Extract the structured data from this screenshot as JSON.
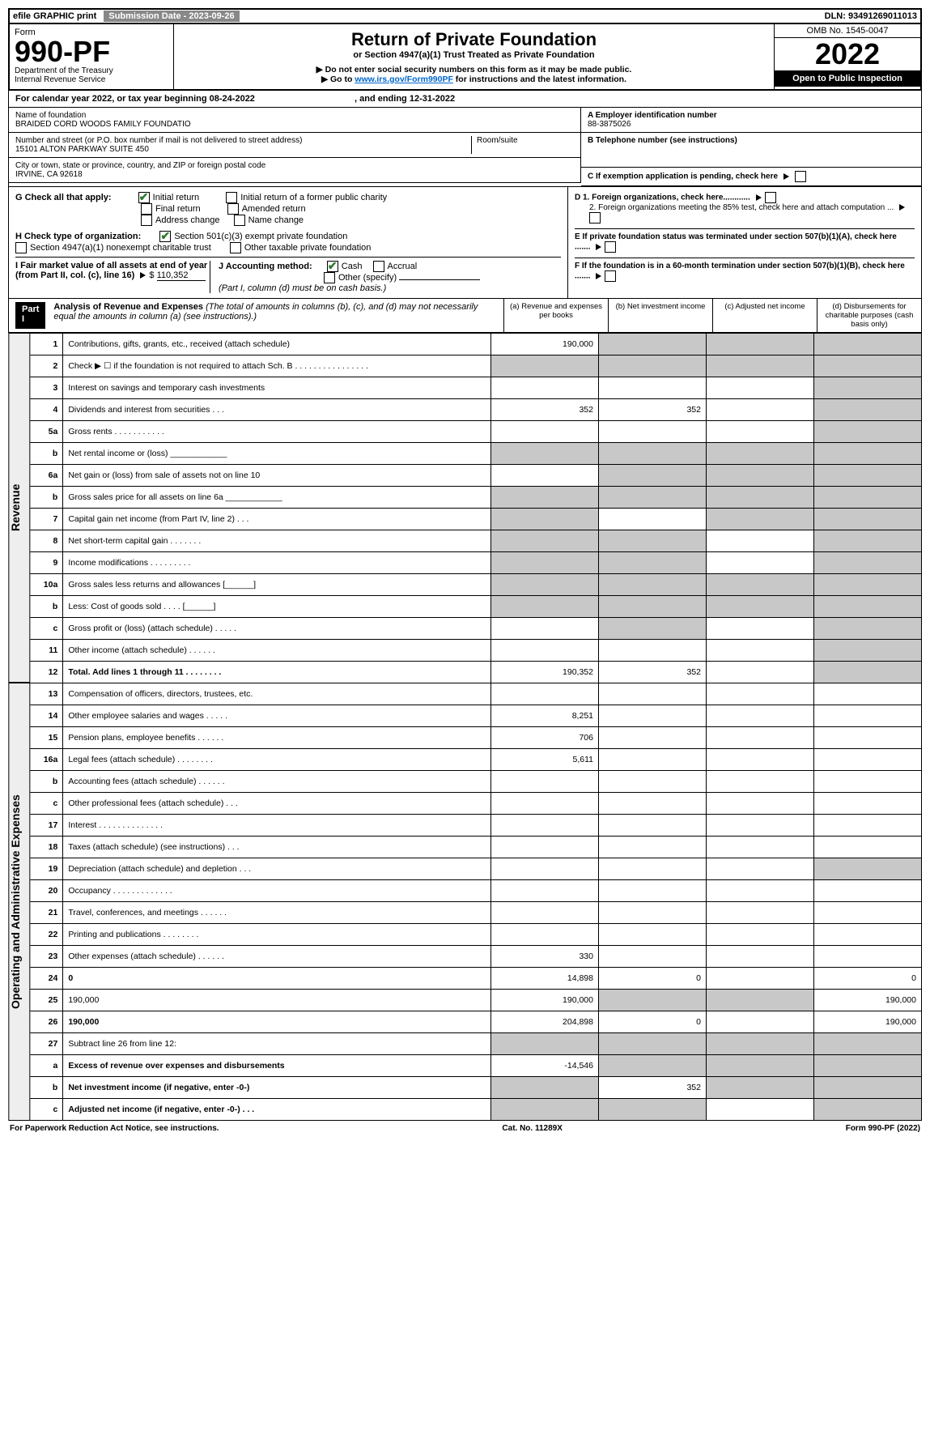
{
  "topbar": {
    "efile": "efile GRAPHIC print",
    "sub_label": "Submission Date - 2023-09-26",
    "dln_label": "DLN: 93491269011013"
  },
  "header": {
    "form_word": "Form",
    "form_no": "990-PF",
    "dept": "Department of the Treasury",
    "irs": "Internal Revenue Service",
    "title": "Return of Private Foundation",
    "subtitle": "or Section 4947(a)(1) Trust Treated as Private Foundation",
    "note1": "▶ Do not enter social security numbers on this form as it may be made public.",
    "note2_pre": "▶ Go to ",
    "note2_link": "www.irs.gov/Form990PF",
    "note2_post": " for instructions and the latest information.",
    "omb": "OMB No. 1545-0047",
    "year": "2022",
    "open": "Open to Public Inspection"
  },
  "calendar": {
    "text_pre": "For calendar year 2022, or tax year beginning ",
    "begin": "08-24-2022",
    "mid": " , and ending ",
    "end": "12-31-2022"
  },
  "info": {
    "name_label": "Name of foundation",
    "name": "BRAIDED CORD WOODS FAMILY FOUNDATIO",
    "addr_label": "Number and street (or P.O. box number if mail is not delivered to street address)",
    "room_label": "Room/suite",
    "addr": "15101 ALTON PARKWAY SUITE 450",
    "city_label": "City or town, state or province, country, and ZIP or foreign postal code",
    "city": "IRVINE, CA  92618",
    "ein_label": "A Employer identification number",
    "ein": "88-3875026",
    "tel_label": "B Telephone number (see instructions)",
    "c_label": "C If exemption application is pending, check here",
    "d1": "D 1. Foreign organizations, check here............",
    "d2": "2. Foreign organizations meeting the 85% test, check here and attach computation ...",
    "e": "E If private foundation status was terminated under section 507(b)(1)(A), check here .......",
    "f": "F  If the foundation is in a 60-month termination under section 507(b)(1)(B), check here .......",
    "g_label": "G Check all that apply:",
    "g_opts": [
      "Initial return",
      "Initial return of a former public charity",
      "Final return",
      "Amended return",
      "Address change",
      "Name change"
    ],
    "h_label": "H Check type of organization:",
    "h_opts": [
      "Section 501(c)(3) exempt private foundation",
      "Section 4947(a)(1) nonexempt charitable trust",
      "Other taxable private foundation"
    ],
    "i_label": "I Fair market value of all assets at end of year (from Part II, col. (c), line 16)",
    "i_val": "110,352",
    "j_label": "J Accounting method:",
    "j_opts": [
      "Cash",
      "Accrual",
      "Other (specify)"
    ],
    "j_note": "(Part I, column (d) must be on cash basis.)"
  },
  "part1": {
    "label": "Part I",
    "title": "Analysis of Revenue and Expenses",
    "title_note": " (The total of amounts in columns (b), (c), and (d) may not necessarily equal the amounts in column (a) (see instructions).)",
    "colA": "(a)  Revenue and expenses per books",
    "colB": "(b)  Net investment income",
    "colC": "(c)  Adjusted net income",
    "colD": "(d)  Disbursements for charitable purposes (cash basis only)"
  },
  "sideRevenue": "Revenue",
  "sideExpenses": "Operating and Administrative Expenses",
  "rows": [
    {
      "n": "1",
      "d": "Contributions, gifts, grants, etc., received (attach schedule)",
      "a": "190,000",
      "bShade": true,
      "cShade": true,
      "dShade": true
    },
    {
      "n": "2",
      "d": "Check ▶ ☐ if the foundation is not required to attach Sch. B    .  .  .  .  .  .  .  .  .  .  .  .  .  .  .  .",
      "aShade": true,
      "bShade": true,
      "cShade": true,
      "dShade": true
    },
    {
      "n": "3",
      "d": "Interest on savings and temporary cash investments",
      "dShade": true
    },
    {
      "n": "4",
      "d": "Dividends and interest from securities   .   .   .",
      "a": "352",
      "b": "352",
      "dShade": true
    },
    {
      "n": "5a",
      "d": "Gross rents    .   .   .   .   .   .   .   .   .   .   .",
      "dShade": true
    },
    {
      "n": "b",
      "d": "Net rental income or (loss)  ____________",
      "aShade": true,
      "bShade": true,
      "cShade": true,
      "dShade": true
    },
    {
      "n": "6a",
      "d": "Net gain or (loss) from sale of assets not on line 10",
      "bShade": true,
      "cShade": true,
      "dShade": true
    },
    {
      "n": "b",
      "d": "Gross sales price for all assets on line 6a ____________",
      "aShade": true,
      "bShade": true,
      "cShade": true,
      "dShade": true
    },
    {
      "n": "7",
      "d": "Capital gain net income (from Part IV, line 2)   .   .   .",
      "aShade": true,
      "cShade": true,
      "dShade": true
    },
    {
      "n": "8",
      "d": "Net short-term capital gain  .   .   .   .   .   .   .",
      "aShade": true,
      "bShade": true,
      "dShade": true
    },
    {
      "n": "9",
      "d": "Income modifications  .   .   .   .   .   .   .   .   .",
      "aShade": true,
      "bShade": true,
      "dShade": true
    },
    {
      "n": "10a",
      "d": "Gross sales less returns and allowances  [______]",
      "aShade": true,
      "bShade": true,
      "cShade": true,
      "dShade": true
    },
    {
      "n": "b",
      "d": "Less: Cost of goods sold   .   .   .   .  [______]",
      "aShade": true,
      "bShade": true,
      "cShade": true,
      "dShade": true
    },
    {
      "n": "c",
      "d": "Gross profit or (loss) (attach schedule)   .   .   .   .   .",
      "bShade": true,
      "dShade": true
    },
    {
      "n": "11",
      "d": "Other income (attach schedule)   .   .   .   .   .   .",
      "dShade": true
    },
    {
      "n": "12",
      "d": "Total. Add lines 1 through 11   .   .   .   .   .   .   .   .",
      "bold": true,
      "a": "190,352",
      "b": "352",
      "dShade": true
    },
    {
      "n": "13",
      "d": "Compensation of officers, directors, trustees, etc.",
      "sec": "exp"
    },
    {
      "n": "14",
      "d": "Other employee salaries and wages   .   .   .   .   .",
      "a": "8,251",
      "sec": "exp"
    },
    {
      "n": "15",
      "d": "Pension plans, employee benefits  .   .   .   .   .   .",
      "a": "706",
      "sec": "exp"
    },
    {
      "n": "16a",
      "d": "Legal fees (attach schedule) .   .   .   .   .   .   .   .",
      "a": "5,611",
      "sec": "exp"
    },
    {
      "n": "b",
      "d": "Accounting fees (attach schedule)  .   .   .   .   .   .",
      "sec": "exp"
    },
    {
      "n": "c",
      "d": "Other professional fees (attach schedule)   .   .   .",
      "sec": "exp"
    },
    {
      "n": "17",
      "d": "Interest  .   .   .   .   .   .   .   .   .   .   .   .   .   .",
      "sec": "exp"
    },
    {
      "n": "18",
      "d": "Taxes (attach schedule) (see instructions)   .   .   .",
      "sec": "exp"
    },
    {
      "n": "19",
      "d": "Depreciation (attach schedule) and depletion   .   .   .",
      "dShade": true,
      "sec": "exp"
    },
    {
      "n": "20",
      "d": "Occupancy .   .   .   .   .   .   .   .   .   .   .   .   .",
      "sec": "exp"
    },
    {
      "n": "21",
      "d": "Travel, conferences, and meetings  .   .   .   .   .   .",
      "sec": "exp"
    },
    {
      "n": "22",
      "d": "Printing and publications  .   .   .   .   .   .   .   .",
      "sec": "exp"
    },
    {
      "n": "23",
      "d": "Other expenses (attach schedule)  .   .   .   .   .   .",
      "a": "330",
      "sec": "exp"
    },
    {
      "n": "24",
      "d": "0",
      "bold": true,
      "a": "14,898",
      "b": "0",
      "sec": "exp"
    },
    {
      "n": "25",
      "d": "190,000",
      "a": "190,000",
      "bShade": true,
      "cShade": true,
      "sec": "exp"
    },
    {
      "n": "26",
      "d": "190,000",
      "bold": true,
      "a": "204,898",
      "b": "0",
      "sec": "exp"
    },
    {
      "n": "27",
      "d": "Subtract line 26 from line 12:",
      "aShade": true,
      "bShade": true,
      "cShade": true,
      "dShade": true,
      "sec": "exp"
    },
    {
      "n": "a",
      "d": "Excess of revenue over expenses and disbursements",
      "bold": true,
      "a": "-14,546",
      "bShade": true,
      "cShade": true,
      "dShade": true,
      "sec": "exp"
    },
    {
      "n": "b",
      "d": "Net investment income (if negative, enter -0-)",
      "bold": true,
      "aShade": true,
      "b": "352",
      "cShade": true,
      "dShade": true,
      "sec": "exp"
    },
    {
      "n": "c",
      "d": "Adjusted net income (if negative, enter -0-)   .   .   .",
      "bold": true,
      "aShade": true,
      "bShade": true,
      "dShade": true,
      "sec": "exp"
    }
  ],
  "footer": {
    "left": "For Paperwork Reduction Act Notice, see instructions.",
    "mid": "Cat. No. 11289X",
    "right": "Form 990-PF (2022)"
  }
}
